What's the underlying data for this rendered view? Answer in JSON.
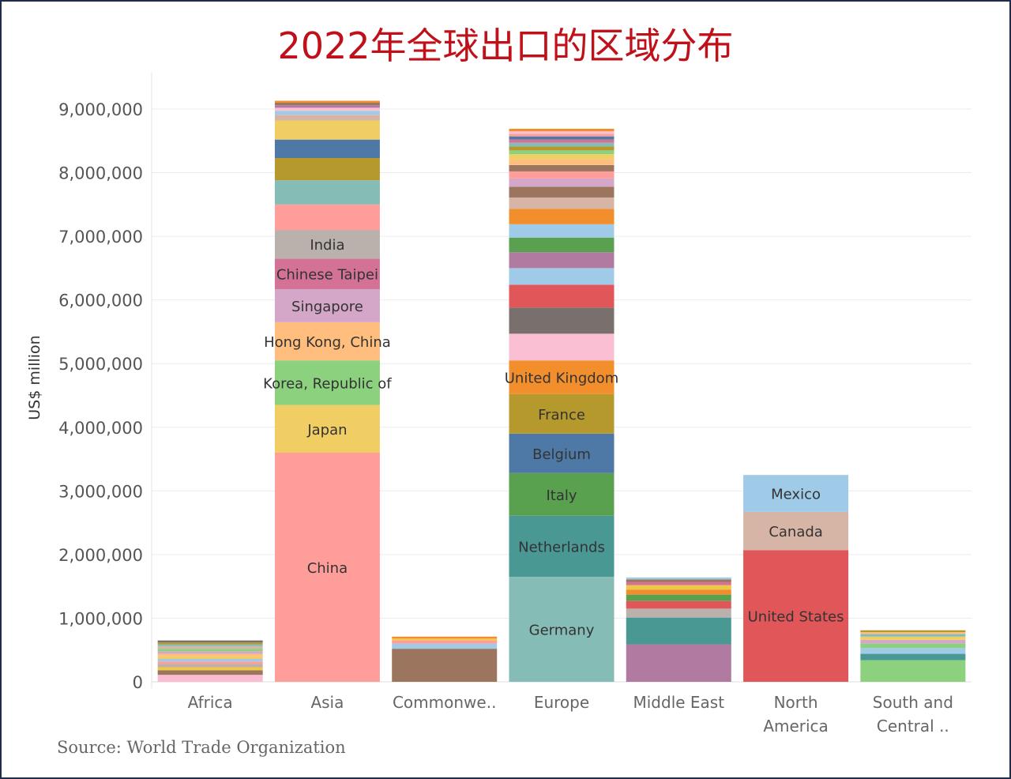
{
  "title": "2022年全球出口的区域分布",
  "source": "Source: World Trade Organization",
  "chart_data": {
    "type": "bar",
    "stacked": true,
    "ylabel": "US$ million",
    "ylim": [
      0,
      9500000
    ],
    "yticks": [
      {
        "value": 0,
        "label": "0"
      },
      {
        "value": 1000000,
        "label": "1,000,000"
      },
      {
        "value": 2000000,
        "label": "2,000,000"
      },
      {
        "value": 3000000,
        "label": "3,000,000"
      },
      {
        "value": 4000000,
        "label": "4,000,000"
      },
      {
        "value": 5000000,
        "label": "5,000,000"
      },
      {
        "value": 6000000,
        "label": "6,000,000"
      },
      {
        "value": 7000000,
        "label": "7,000,000"
      },
      {
        "value": 8000000,
        "label": "8,000,000"
      },
      {
        "value": 9000000,
        "label": "9,000,000"
      }
    ],
    "grid": true,
    "legend": "none",
    "categories": [
      {
        "name": "Africa",
        "segments": [
          {
            "name": "",
            "value": 110000,
            "color": "#f9bcd1"
          },
          {
            "name": "",
            "value": 70000,
            "color": "#9c755f"
          },
          {
            "name": "",
            "value": 50000,
            "color": "#edc948"
          },
          {
            "name": "",
            "value": 50000,
            "color": "#bab0ac"
          },
          {
            "name": "",
            "value": 40000,
            "color": "#ff9d9a"
          },
          {
            "name": "",
            "value": 40000,
            "color": "#a0cbe8"
          },
          {
            "name": "",
            "value": 40000,
            "color": "#f1ce63"
          },
          {
            "name": "",
            "value": 40000,
            "color": "#ffbe7d"
          },
          {
            "name": "",
            "value": 40000,
            "color": "#d4a6c8"
          },
          {
            "name": "",
            "value": 40000,
            "color": "#8cd17d"
          },
          {
            "name": "",
            "value": 40000,
            "color": "#d7b5a6"
          },
          {
            "name": "",
            "value": 30000,
            "color": "#86bcb6"
          },
          {
            "name": "",
            "value": 30000,
            "color": "#b6992d"
          },
          {
            "name": "",
            "value": 30000,
            "color": "#79706e"
          }
        ]
      },
      {
        "name": "Asia",
        "segments": [
          {
            "name": "China",
            "value": 3600000,
            "color": "#ff9d9a"
          },
          {
            "name": "Japan",
            "value": 750000,
            "color": "#f1ce63"
          },
          {
            "name": "Korea, Republic of",
            "value": 700000,
            "color": "#8cd17d"
          },
          {
            "name": "Hong Kong, China",
            "value": 600000,
            "color": "#ffbe7d"
          },
          {
            "name": "Singapore",
            "value": 520000,
            "color": "#d4a6c8"
          },
          {
            "name": "Chinese Taipei",
            "value": 480000,
            "color": "#d37295"
          },
          {
            "name": "India",
            "value": 450000,
            "color": "#bab0ac"
          },
          {
            "name": "",
            "value": 400000,
            "color": "#ff9d9a"
          },
          {
            "name": "",
            "value": 380000,
            "color": "#86bcb6"
          },
          {
            "name": "",
            "value": 350000,
            "color": "#b6992d"
          },
          {
            "name": "",
            "value": 290000,
            "color": "#4e79a7"
          },
          {
            "name": "",
            "value": 300000,
            "color": "#f1ce63"
          },
          {
            "name": "",
            "value": 90000,
            "color": "#d7b5a6"
          },
          {
            "name": "",
            "value": 60000,
            "color": "#a0cbe8"
          },
          {
            "name": "",
            "value": 50000,
            "color": "#fabfd2"
          },
          {
            "name": "",
            "value": 40000,
            "color": "#b07aa1"
          },
          {
            "name": "",
            "value": 40000,
            "color": "#9c755f"
          },
          {
            "name": "",
            "value": 30000,
            "color": "#f28e2b"
          }
        ]
      },
      {
        "name": "Commonwe..",
        "segments": [
          {
            "name": "",
            "value": 520000,
            "color": "#9c755f"
          },
          {
            "name": "",
            "value": 80000,
            "color": "#a0cbe8"
          },
          {
            "name": "",
            "value": 50000,
            "color": "#ff9d9a"
          },
          {
            "name": "",
            "value": 30000,
            "color": "#edc948"
          },
          {
            "name": "",
            "value": 30000,
            "color": "#f28e2b"
          }
        ]
      },
      {
        "name": "Europe",
        "segments": [
          {
            "name": "Germany",
            "value": 1650000,
            "color": "#86bcb6"
          },
          {
            "name": "Netherlands",
            "value": 960000,
            "color": "#499894"
          },
          {
            "name": "Italy",
            "value": 670000,
            "color": "#59a14f"
          },
          {
            "name": "Belgium",
            "value": 620000,
            "color": "#4e79a7"
          },
          {
            "name": "France",
            "value": 620000,
            "color": "#b6992d"
          },
          {
            "name": "United Kingdom",
            "value": 530000,
            "color": "#f28e2b"
          },
          {
            "name": "",
            "value": 420000,
            "color": "#fabfd2"
          },
          {
            "name": "",
            "value": 410000,
            "color": "#79706e"
          },
          {
            "name": "",
            "value": 360000,
            "color": "#e15759"
          },
          {
            "name": "",
            "value": 260000,
            "color": "#a0cbe8"
          },
          {
            "name": "",
            "value": 250000,
            "color": "#b07aa1"
          },
          {
            "name": "",
            "value": 230000,
            "color": "#59a14f"
          },
          {
            "name": "",
            "value": 210000,
            "color": "#a0cbe8"
          },
          {
            "name": "",
            "value": 240000,
            "color": "#f28e2b"
          },
          {
            "name": "",
            "value": 180000,
            "color": "#d7b5a6"
          },
          {
            "name": "",
            "value": 170000,
            "color": "#9c755f"
          },
          {
            "name": "",
            "value": 130000,
            "color": "#d4a6c8"
          },
          {
            "name": "",
            "value": 110000,
            "color": "#ff9d9a"
          },
          {
            "name": "",
            "value": 100000,
            "color": "#9c755f"
          },
          {
            "name": "",
            "value": 90000,
            "color": "#ffbe7d"
          },
          {
            "name": "",
            "value": 80000,
            "color": "#f1ce63"
          },
          {
            "name": "",
            "value": 60000,
            "color": "#8cd17d"
          },
          {
            "name": "",
            "value": 60000,
            "color": "#b6992d"
          },
          {
            "name": "",
            "value": 60000,
            "color": "#86bcb6"
          },
          {
            "name": "",
            "value": 50000,
            "color": "#d37295"
          },
          {
            "name": "",
            "value": 50000,
            "color": "#4e79a7"
          },
          {
            "name": "",
            "value": 40000,
            "color": "#ff9d9a"
          },
          {
            "name": "",
            "value": 40000,
            "color": "#fabfd2"
          },
          {
            "name": "",
            "value": 40000,
            "color": "#f28e2b"
          }
        ]
      },
      {
        "name": "Middle East",
        "segments": [
          {
            "name": "",
            "value": 590000,
            "color": "#b07aa1"
          },
          {
            "name": "",
            "value": 420000,
            "color": "#499894"
          },
          {
            "name": "",
            "value": 140000,
            "color": "#bab0ac"
          },
          {
            "name": "",
            "value": 120000,
            "color": "#e15759"
          },
          {
            "name": "",
            "value": 100000,
            "color": "#59a14f"
          },
          {
            "name": "",
            "value": 80000,
            "color": "#f28e2b"
          },
          {
            "name": "",
            "value": 70000,
            "color": "#edc948"
          },
          {
            "name": "",
            "value": 50000,
            "color": "#d37295"
          },
          {
            "name": "",
            "value": 40000,
            "color": "#9c755f"
          },
          {
            "name": "",
            "value": 30000,
            "color": "#a0cbe8"
          }
        ]
      },
      {
        "name": "North America",
        "segments": [
          {
            "name": "United States",
            "value": 2070000,
            "color": "#e15759"
          },
          {
            "name": "Canada",
            "value": 600000,
            "color": "#d7b5a6"
          },
          {
            "name": "Mexico",
            "value": 580000,
            "color": "#a0cbe8"
          }
        ]
      },
      {
        "name": "South and Central ..",
        "segments": [
          {
            "name": "",
            "value": 340000,
            "color": "#8cd17d"
          },
          {
            "name": "",
            "value": 100000,
            "color": "#499894"
          },
          {
            "name": "",
            "value": 90000,
            "color": "#a0cbe8"
          },
          {
            "name": "",
            "value": 70000,
            "color": "#8cd17d"
          },
          {
            "name": "",
            "value": 60000,
            "color": "#d4a6c8"
          },
          {
            "name": "",
            "value": 50000,
            "color": "#f1ce63"
          },
          {
            "name": "",
            "value": 40000,
            "color": "#86bcb6"
          },
          {
            "name": "",
            "value": 30000,
            "color": "#ffbe7d"
          },
          {
            "name": "",
            "value": 30000,
            "color": "#b6992d"
          }
        ]
      }
    ]
  }
}
